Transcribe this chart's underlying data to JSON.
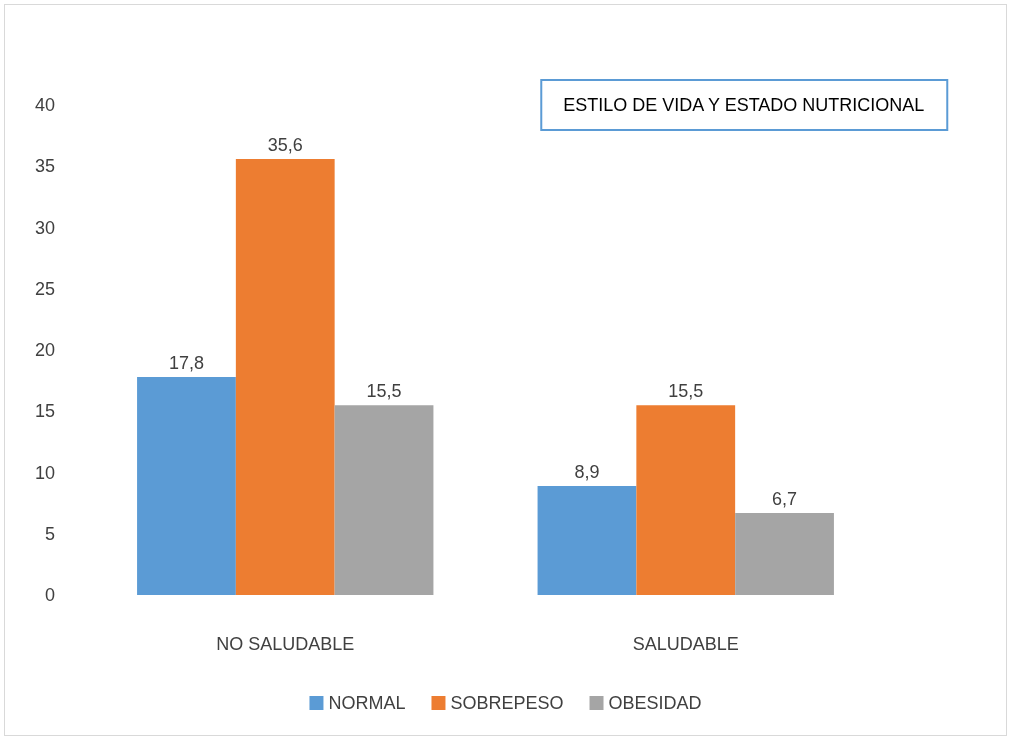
{
  "chart_data": {
    "type": "bar",
    "title": "ESTILO DE VIDA Y ESTADO NUTRICIONAL",
    "categories": [
      "NO SALUDABLE",
      "SALUDABLE"
    ],
    "series": [
      {
        "name": "NORMAL",
        "color": "#5b9bd5",
        "values": [
          17.8,
          8.9
        ],
        "value_labels": [
          "17,8",
          "8,9"
        ]
      },
      {
        "name": "SOBREPESO",
        "color": "#ed7d31",
        "values": [
          35.6,
          15.5
        ],
        "value_labels": [
          "35,6",
          "15,5"
        ]
      },
      {
        "name": "OBESIDAD",
        "color": "#a5a5a5",
        "values": [
          15.5,
          6.7
        ],
        "value_labels": [
          "15,5",
          "6,7"
        ]
      }
    ],
    "ylim": [
      0,
      40
    ],
    "yticks": [
      0,
      5,
      10,
      15,
      20,
      25,
      30,
      35,
      40
    ],
    "legend": "bottom"
  }
}
